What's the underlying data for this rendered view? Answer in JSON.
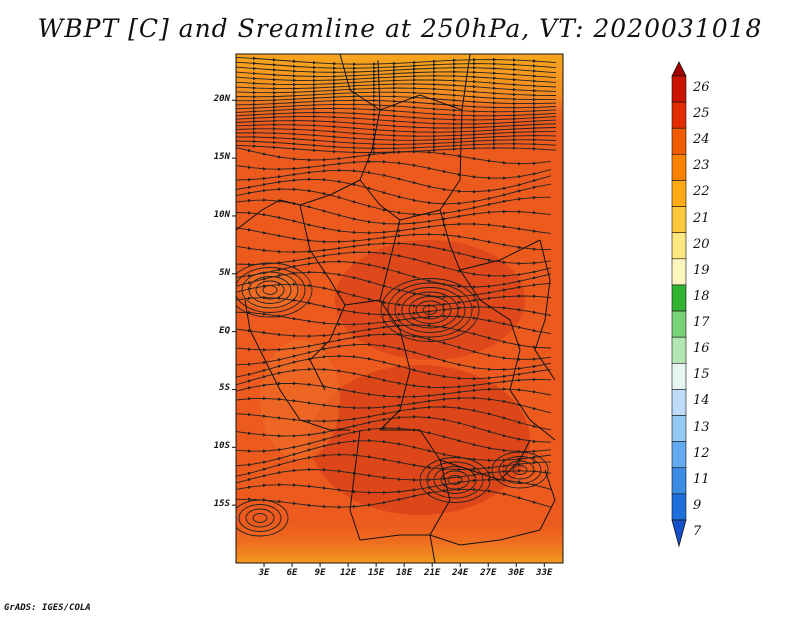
{
  "title": "WBPT [C] and Sreamline at 250hPa, VT: 2020031018",
  "footer": "GrADS: IGES/COLA",
  "map": {
    "lon_range": [
      0,
      35
    ],
    "lat_range": [
      -20,
      24
    ],
    "lat_ticks": [
      {
        "value": 20,
        "label": "20N"
      },
      {
        "value": 15,
        "label": "15N"
      },
      {
        "value": 10,
        "label": "10N"
      },
      {
        "value": 5,
        "label": "5N"
      },
      {
        "value": 0,
        "label": "EQ"
      },
      {
        "value": -5,
        "label": "5S"
      },
      {
        "value": -10,
        "label": "10S"
      },
      {
        "value": -15,
        "label": "15S"
      }
    ],
    "lon_ticks": [
      {
        "value": 3,
        "label": "3E"
      },
      {
        "value": 6,
        "label": "6E"
      },
      {
        "value": 9,
        "label": "9E"
      },
      {
        "value": 12,
        "label": "12E"
      },
      {
        "value": 15,
        "label": "15E"
      },
      {
        "value": 18,
        "label": "18E"
      },
      {
        "value": 21,
        "label": "21E"
      },
      {
        "value": 24,
        "label": "24E"
      },
      {
        "value": 27,
        "label": "27E"
      },
      {
        "value": 30,
        "label": "30E"
      },
      {
        "value": 33,
        "label": "33E"
      }
    ]
  },
  "colorbar": {
    "levels": [
      "26",
      "25",
      "24",
      "23",
      "22",
      "21",
      "20",
      "19",
      "18",
      "17",
      "16",
      "15",
      "14",
      "13",
      "12",
      "11",
      "9",
      "7"
    ],
    "colors": [
      "#a50000",
      "#c81400",
      "#e12d00",
      "#f05a00",
      "#fa8200",
      "#fdaa14",
      "#fec83c",
      "#fee682",
      "#fff5be",
      "#32b432",
      "#78d278",
      "#b4e6b4",
      "#e6f5f0",
      "#bedcfa",
      "#96c8f5",
      "#64aaf0",
      "#3c8ce6",
      "#1e6edc",
      "#1450c8"
    ]
  },
  "legend_colors": {
    "field_base": "#e8501e",
    "field_warm": "#d23c14",
    "field_cool": "#f07828",
    "field_edge": "#f5a01e",
    "streamline": "#222222",
    "border": "#111111"
  }
}
